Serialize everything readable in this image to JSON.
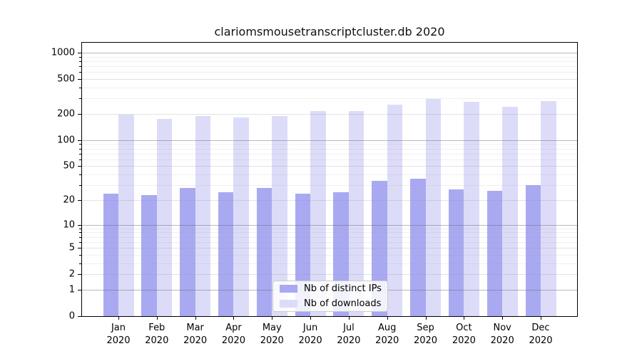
{
  "chart_data": {
    "type": "bar",
    "title": "clariomsmousetranscriptcluster.db 2020",
    "categories": [
      "Jan",
      "Feb",
      "Mar",
      "Apr",
      "May",
      "Jun",
      "Jul",
      "Aug",
      "Sep",
      "Oct",
      "Nov",
      "Dec"
    ],
    "x_sublabel": "2020",
    "series": [
      {
        "name": "Nb of distinct IPs",
        "color": "#a9a9f2",
        "values": [
          24,
          23,
          28,
          25,
          28,
          24,
          25,
          34,
          36,
          27,
          26,
          30
        ]
      },
      {
        "name": "Nb of downloads",
        "color": "#dcdcf9",
        "values": [
          195,
          175,
          190,
          181,
          189,
          217,
          215,
          254,
          294,
          273,
          240,
          278
        ]
      }
    ],
    "y_scale": "log1p",
    "y_ticks": [
      0,
      1,
      2,
      5,
      10,
      20,
      50,
      100,
      200,
      500,
      1000
    ],
    "y_minor_ticks": [
      3,
      4,
      6,
      7,
      8,
      9,
      30,
      40,
      60,
      70,
      80,
      90,
      300,
      400,
      600,
      700,
      800,
      900
    ],
    "ylim": [
      0,
      1300
    ],
    "grid": "horizontal",
    "legend_position": "lower center",
    "axis_color": "#000000",
    "grid_major_color": "#646464",
    "grid_minor_color": "#9b9b9b"
  }
}
